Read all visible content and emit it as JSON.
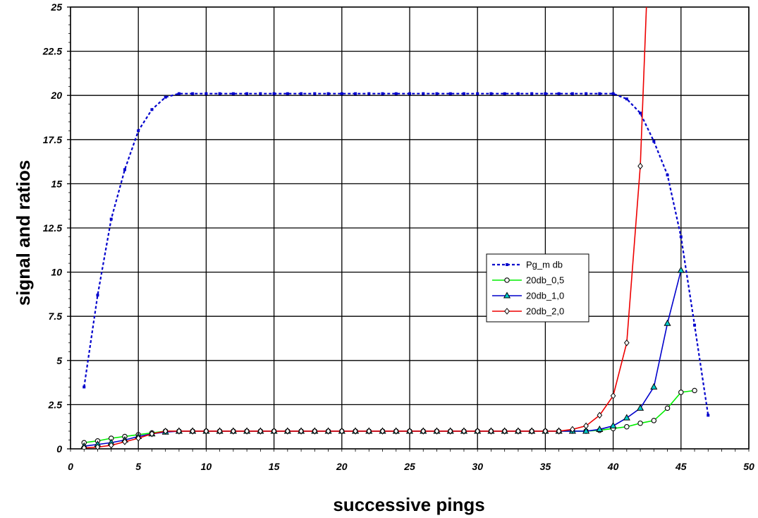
{
  "chart_data": {
    "type": "line",
    "title": "",
    "xlabel": "successive pings",
    "ylabel": "signal and ratios",
    "xlim": [
      0,
      50
    ],
    "ylim": [
      0,
      25
    ],
    "xticks": [
      "0",
      "5",
      "10",
      "15",
      "20",
      "25",
      "30",
      "35",
      "40",
      "45",
      "50"
    ],
    "yticks": [
      "0",
      "2.5",
      "5",
      "7.5",
      "10",
      "12.5",
      "15",
      "17.5",
      "20",
      "22.5",
      "25"
    ],
    "grid": true,
    "legend_position": "center-right",
    "series": [
      {
        "name": "Pg_m db",
        "color": "#0000cc",
        "style": "dotted",
        "marker": "square",
        "points": [
          [
            1,
            3.5
          ],
          [
            2,
            8.7
          ],
          [
            3,
            13
          ],
          [
            4,
            15.8
          ],
          [
            5,
            18
          ],
          [
            6,
            19.2
          ],
          [
            7,
            19.9
          ],
          [
            8,
            20.1
          ],
          [
            9,
            20.1
          ],
          [
            10,
            20.1
          ],
          [
            11,
            20.1
          ],
          [
            12,
            20.1
          ],
          [
            13,
            20.1
          ],
          [
            14,
            20.1
          ],
          [
            15,
            20.1
          ],
          [
            16,
            20.1
          ],
          [
            17,
            20.1
          ],
          [
            18,
            20.1
          ],
          [
            19,
            20.1
          ],
          [
            20,
            20.1
          ],
          [
            21,
            20.1
          ],
          [
            22,
            20.1
          ],
          [
            23,
            20.1
          ],
          [
            24,
            20.1
          ],
          [
            25,
            20.1
          ],
          [
            26,
            20.1
          ],
          [
            27,
            20.1
          ],
          [
            28,
            20.1
          ],
          [
            29,
            20.1
          ],
          [
            30,
            20.1
          ],
          [
            31,
            20.1
          ],
          [
            32,
            20.1
          ],
          [
            33,
            20.1
          ],
          [
            34,
            20.1
          ],
          [
            35,
            20.1
          ],
          [
            36,
            20.1
          ],
          [
            37,
            20.1
          ],
          [
            38,
            20.1
          ],
          [
            39,
            20.1
          ],
          [
            40,
            20.1
          ],
          [
            41,
            19.8
          ],
          [
            42,
            19
          ],
          [
            43,
            17.4
          ],
          [
            44,
            15.5
          ],
          [
            45,
            12
          ],
          [
            46,
            7
          ],
          [
            47,
            1.9
          ]
        ]
      },
      {
        "name": "20db_0,5",
        "color": "#00ee00",
        "style": "solid",
        "marker": "circle",
        "points": [
          [
            1,
            0.35
          ],
          [
            2,
            0.45
          ],
          [
            3,
            0.6
          ],
          [
            4,
            0.7
          ],
          [
            5,
            0.8
          ],
          [
            6,
            0.9
          ],
          [
            7,
            1.0
          ],
          [
            8,
            1.0
          ],
          [
            9,
            1.0
          ],
          [
            10,
            1.0
          ],
          [
            11,
            1.0
          ],
          [
            12,
            1.0
          ],
          [
            13,
            1.0
          ],
          [
            14,
            1.0
          ],
          [
            15,
            1.0
          ],
          [
            16,
            1.0
          ],
          [
            17,
            1.0
          ],
          [
            18,
            1.0
          ],
          [
            19,
            1.0
          ],
          [
            20,
            1.0
          ],
          [
            21,
            1.0
          ],
          [
            22,
            1.0
          ],
          [
            23,
            1.0
          ],
          [
            24,
            1.0
          ],
          [
            25,
            1.0
          ],
          [
            26,
            1.0
          ],
          [
            27,
            1.0
          ],
          [
            28,
            1.0
          ],
          [
            29,
            1.0
          ],
          [
            30,
            1.0
          ],
          [
            31,
            1.0
          ],
          [
            32,
            1.0
          ],
          [
            33,
            1.0
          ],
          [
            34,
            1.0
          ],
          [
            35,
            1.0
          ],
          [
            36,
            1.0
          ],
          [
            37,
            1.0
          ],
          [
            38,
            1.0
          ],
          [
            39,
            1.05
          ],
          [
            40,
            1.15
          ],
          [
            41,
            1.25
          ],
          [
            42,
            1.45
          ],
          [
            43,
            1.6
          ],
          [
            44,
            2.3
          ],
          [
            45,
            3.2
          ],
          [
            46,
            3.3
          ]
        ]
      },
      {
        "name": "20db_1,0",
        "color": "#0000cc",
        "style": "solid",
        "marker": "triangle",
        "points": [
          [
            1,
            0.15
          ],
          [
            2,
            0.25
          ],
          [
            3,
            0.35
          ],
          [
            4,
            0.5
          ],
          [
            5,
            0.7
          ],
          [
            6,
            0.85
          ],
          [
            7,
            0.95
          ],
          [
            8,
            1.0
          ],
          [
            9,
            1.0
          ],
          [
            10,
            1.0
          ],
          [
            11,
            1.0
          ],
          [
            12,
            1.0
          ],
          [
            13,
            1.0
          ],
          [
            14,
            1.0
          ],
          [
            15,
            1.0
          ],
          [
            16,
            1.0
          ],
          [
            17,
            1.0
          ],
          [
            18,
            1.0
          ],
          [
            19,
            1.0
          ],
          [
            20,
            1.0
          ],
          [
            21,
            1.0
          ],
          [
            22,
            1.0
          ],
          [
            23,
            1.0
          ],
          [
            24,
            1.0
          ],
          [
            25,
            1.0
          ],
          [
            26,
            1.0
          ],
          [
            27,
            1.0
          ],
          [
            28,
            1.0
          ],
          [
            29,
            1.0
          ],
          [
            30,
            1.0
          ],
          [
            31,
            1.0
          ],
          [
            32,
            1.0
          ],
          [
            33,
            1.0
          ],
          [
            34,
            1.0
          ],
          [
            35,
            1.0
          ],
          [
            36,
            1.0
          ],
          [
            37,
            1.0
          ],
          [
            38,
            1.0
          ],
          [
            39,
            1.1
          ],
          [
            40,
            1.3
          ],
          [
            41,
            1.75
          ],
          [
            42,
            2.3
          ],
          [
            43,
            3.5
          ],
          [
            44,
            7.1
          ],
          [
            45,
            10.1
          ]
        ]
      },
      {
        "name": "20db_2,0",
        "color": "#ee0000",
        "style": "solid",
        "marker": "diamond",
        "points": [
          [
            1,
            0.05
          ],
          [
            2,
            0.1
          ],
          [
            3,
            0.2
          ],
          [
            4,
            0.4
          ],
          [
            5,
            0.6
          ],
          [
            6,
            0.85
          ],
          [
            7,
            1.0
          ],
          [
            8,
            1.0
          ],
          [
            9,
            1.0
          ],
          [
            10,
            1.0
          ],
          [
            11,
            1.0
          ],
          [
            12,
            1.0
          ],
          [
            13,
            1.0
          ],
          [
            14,
            1.0
          ],
          [
            15,
            1.0
          ],
          [
            16,
            1.0
          ],
          [
            17,
            1.0
          ],
          [
            18,
            1.0
          ],
          [
            19,
            1.0
          ],
          [
            20,
            1.0
          ],
          [
            21,
            1.0
          ],
          [
            22,
            1.0
          ],
          [
            23,
            1.0
          ],
          [
            24,
            1.0
          ],
          [
            25,
            1.0
          ],
          [
            26,
            1.0
          ],
          [
            27,
            1.0
          ],
          [
            28,
            1.0
          ],
          [
            29,
            1.0
          ],
          [
            30,
            1.0
          ],
          [
            31,
            1.0
          ],
          [
            32,
            1.0
          ],
          [
            33,
            1.0
          ],
          [
            34,
            1.0
          ],
          [
            35,
            1.0
          ],
          [
            36,
            1.0
          ],
          [
            37,
            1.1
          ],
          [
            38,
            1.3
          ],
          [
            39,
            1.9
          ],
          [
            40,
            3.0
          ],
          [
            41,
            6.0
          ],
          [
            42,
            16.0
          ],
          [
            43,
            36.0
          ]
        ]
      }
    ]
  }
}
